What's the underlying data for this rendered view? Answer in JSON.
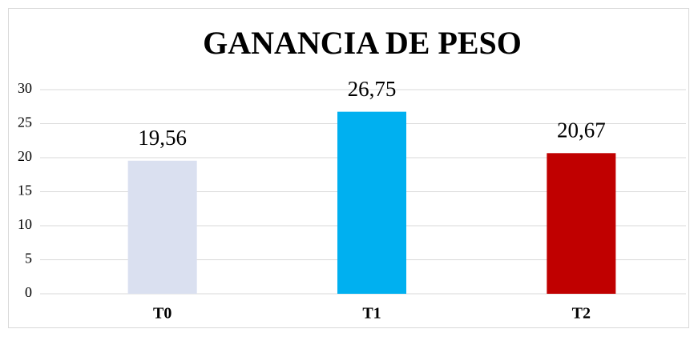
{
  "chart_data": {
    "type": "bar",
    "title": "GANANCIA DE PESO",
    "categories": [
      "T0",
      "T1",
      "T2"
    ],
    "values": [
      19.56,
      26.75,
      20.67
    ],
    "value_labels": [
      "19,56",
      "26,75",
      "20,67"
    ],
    "colors": [
      "#dae0f0",
      "#00b0f0",
      "#c00000"
    ],
    "ylim": [
      0,
      30
    ],
    "yticks": [
      0,
      5,
      10,
      15,
      20,
      25,
      30
    ],
    "grid": true
  }
}
